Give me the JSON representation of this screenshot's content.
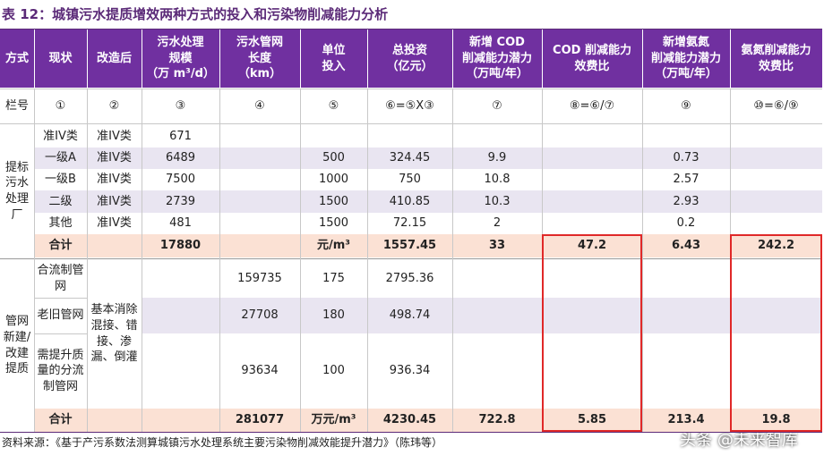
{
  "title": "表 12：城镇污水提质增效两种方式的投入和污染物削减能力分析",
  "header": [
    [
      "方式"
    ],
    [
      "现状"
    ],
    [
      "改造后"
    ],
    [
      "污水处理",
      "规模",
      "（万 m³/d）"
    ],
    [
      "污水管网",
      "长度",
      "（km）"
    ],
    [
      "单位",
      "投入"
    ],
    [
      "总投资",
      "（亿元）"
    ],
    [
      "新增 COD",
      "削减能力潜力",
      "（万吨/年）"
    ],
    [
      "COD 削减能力",
      "效费比"
    ],
    [
      "新增氨氮",
      "削减能力潜力",
      "（万吨/年）"
    ],
    [
      "氨氮削减能力",
      "效费比"
    ]
  ],
  "column_numbers": [
    "栏号",
    "①",
    "②",
    "③",
    "④",
    "⑤",
    "⑥=⑤X③",
    "⑦",
    "⑧=⑥/⑦",
    "⑨",
    "⑩=⑥/⑨"
  ],
  "section1": {
    "label": "提标污水处理厂",
    "rows": [
      {
        "current": "准IV类",
        "upgrade": "准IV类",
        "scale": 671
      },
      {
        "current": "一级A",
        "upgrade": "准IV类",
        "scale": 6489,
        "unit": 500,
        "invest": 324.45,
        "cod": 9.9,
        "nh": 0.73
      },
      {
        "current": "一级B",
        "upgrade": "准IV类",
        "scale": 7500,
        "unit": 1000,
        "invest": 750,
        "cod": 10.8,
        "nh": 2.57
      },
      {
        "current": "二级",
        "upgrade": "准IV类",
        "scale": 2739,
        "unit": 1500,
        "invest": 410.85,
        "cod": 10.3,
        "nh": 2.93
      },
      {
        "current": "其他",
        "upgrade": "准IV类",
        "scale": 481,
        "unit": 1500,
        "invest": 72.15,
        "cod": 2,
        "nh": 0.2
      }
    ],
    "total": {
      "current": "合计",
      "scale": 17880,
      "unit": "元/m³",
      "invest": 1557.45,
      "cod": 33,
      "cod_ratio": 47.2,
      "nh": 6.43,
      "nh_ratio": 242.2
    }
  },
  "section2": {
    "label": "管网新建/改建提质",
    "upgrade": "基本消除混接、错接、渗漏、倒灌",
    "rows": [
      {
        "current": "合流制管网",
        "length": 159735,
        "unit": 175,
        "invest": 2795.36
      },
      {
        "current": "老旧管网",
        "length": 27708,
        "unit": 180,
        "invest": 498.74
      },
      {
        "current": "需提升质量的分流制管网",
        "length": 93634,
        "unit": 100,
        "invest": 936.34
      }
    ],
    "total": {
      "current": "合计",
      "length": 281077,
      "unit": "万元/m³",
      "invest": 4230.45,
      "cod": 722.8,
      "cod_ratio": 5.85,
      "nh": 213.4,
      "nh_ratio": 19.8
    }
  },
  "source": "资料来源：《基于产污系数法测算城镇污水处理系统主要污染物削减效能提升潜力》（陈玮等）",
  "watermark": "头条 @未来智库"
}
